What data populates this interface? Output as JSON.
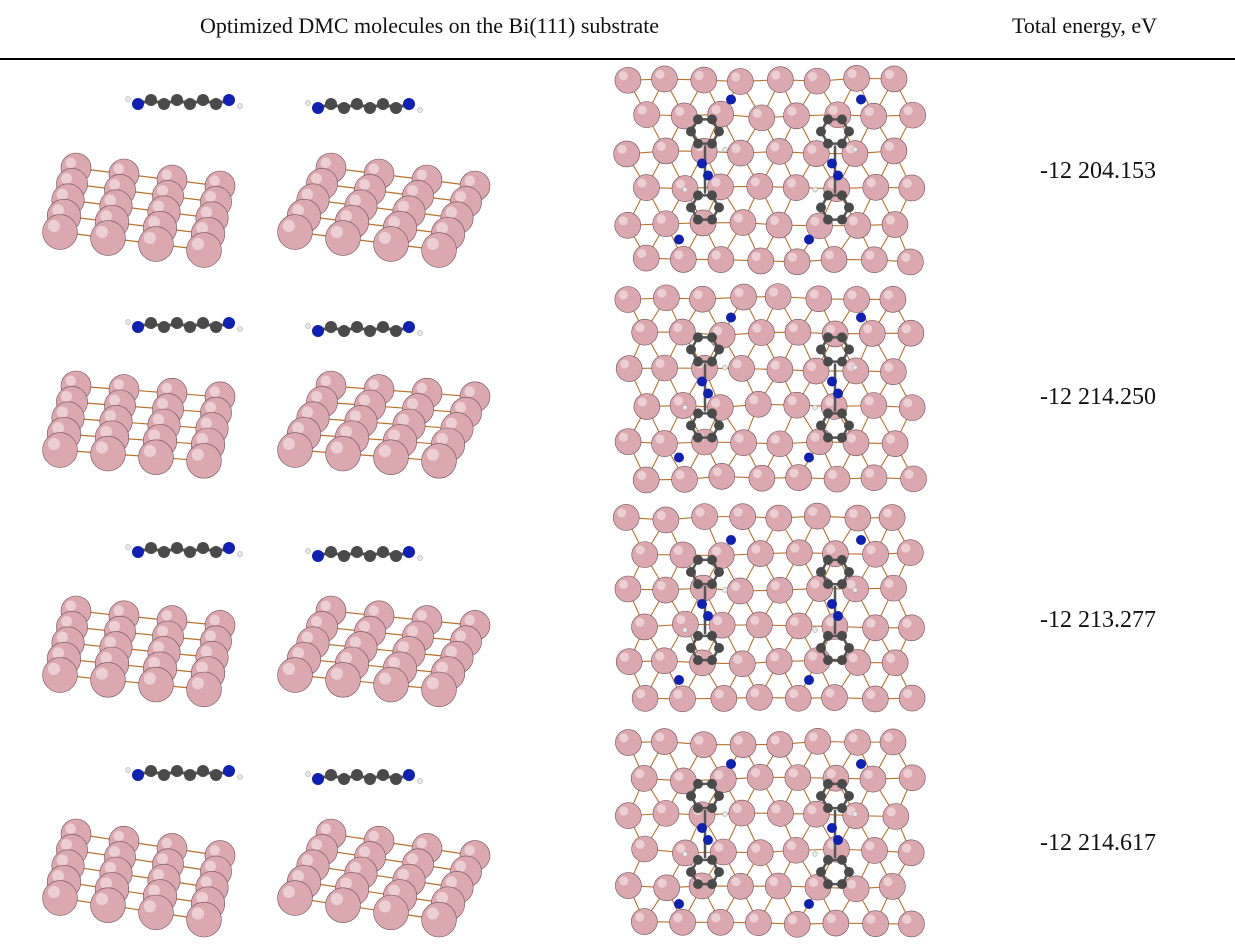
{
  "table": {
    "header": {
      "structure": "Optimized DMC molecules on the Bi(111) substrate",
      "energy": "Total energy, eV"
    },
    "rows": [
      {
        "energy": "-12 204.153"
      },
      {
        "energy": "-12 214.250"
      },
      {
        "energy": "-12 213.277"
      },
      {
        "energy": "-12 214.617"
      }
    ]
  },
  "colors": {
    "bismuth": "#dca8b0",
    "bond": "#b8722c",
    "carbon": "#4a4a4a",
    "nitrogen": "#1020b0",
    "hydrogen": "#e8e8e8"
  }
}
